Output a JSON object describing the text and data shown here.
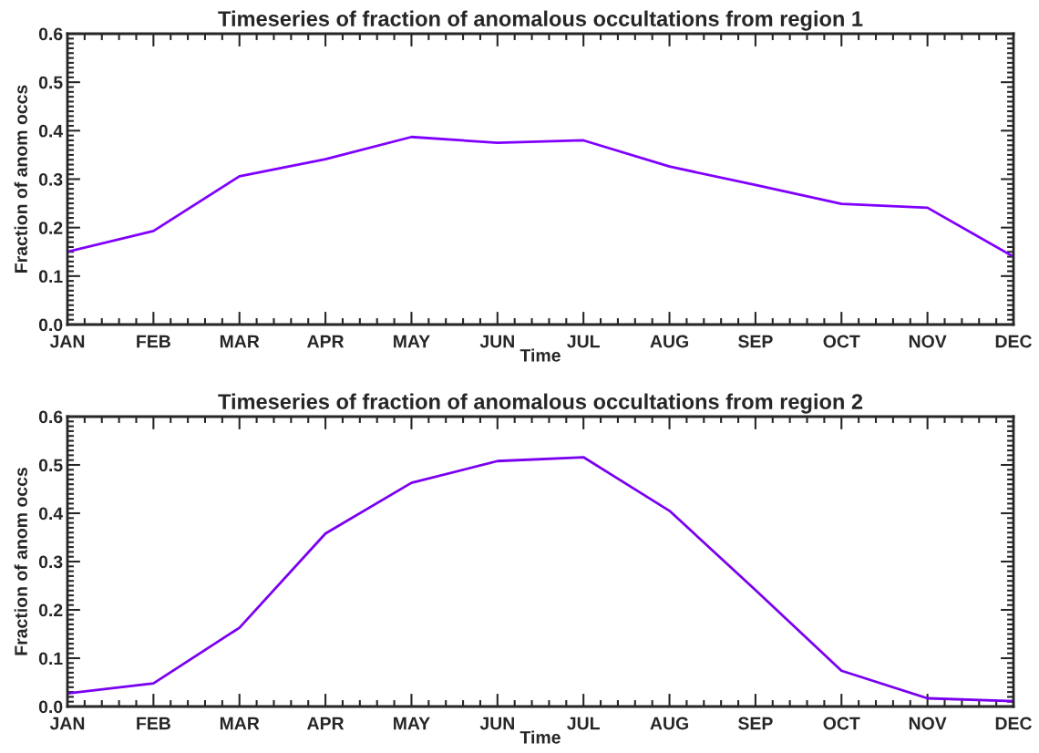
{
  "chart_data": [
    {
      "type": "line",
      "title": "Timeseries of fraction of anomalous occultations from region 1",
      "xlabel": "Time",
      "ylabel": "Fraction of anom occs",
      "categories": [
        "JAN",
        "FEB",
        "MAR",
        "APR",
        "MAY",
        "JUN",
        "JUL",
        "AUG",
        "SEP",
        "OCT",
        "NOV",
        "DEC"
      ],
      "series": [
        {
          "color": "#8000ff",
          "values": [
            0.15,
            0.193,
            0.306,
            0.341,
            0.387,
            0.375,
            0.38,
            0.326,
            0.288,
            0.249,
            0.241,
            0.14
          ]
        }
      ],
      "ylim": [
        0,
        0.6
      ],
      "yticks": [
        {
          "value": 0,
          "label": "0.0"
        },
        0.1,
        0.2,
        0.3,
        0.4,
        0.5,
        0.6
      ],
      "grid": false,
      "legend": false,
      "marker": "none",
      "line_style": "solid"
    },
    {
      "type": "line",
      "title": "Timeseries of fraction of anomalous occultations from region 2",
      "xlabel": "Time",
      "ylabel": "Fraction of anom occs",
      "categories": [
        "JAN",
        "FEB",
        "MAR",
        "APR",
        "MAY",
        "JUN",
        "JUL",
        "AUG",
        "SEP",
        "OCT",
        "NOV",
        "DEC"
      ],
      "series": [
        {
          "color": "#7a00f0",
          "values": [
            0.027,
            0.048,
            0.163,
            0.358,
            0.463,
            0.508,
            0.516,
            0.405,
            0.241,
            0.074,
            0.017,
            0.011
          ]
        }
      ],
      "ylim": [
        0,
        0.6
      ],
      "yticks": [
        {
          "value": 0,
          "label": "0.0"
        },
        0.1,
        0.2,
        0.3,
        0.4,
        0.5,
        0.6
      ],
      "grid": false,
      "legend": false,
      "marker": "none",
      "line_style": "solid"
    }
  ]
}
